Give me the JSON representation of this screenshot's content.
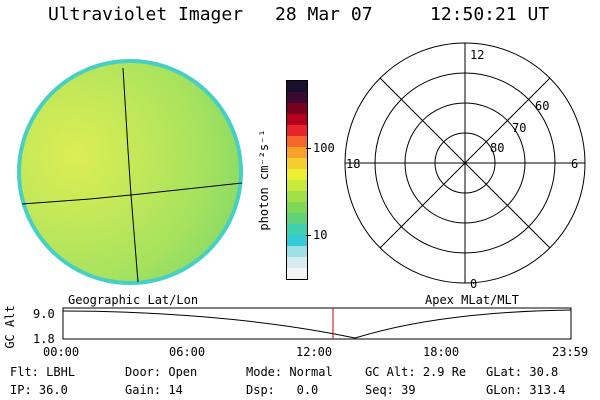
{
  "header": {
    "title": "Ultraviolet Imager",
    "date": "28 Mar 07",
    "time": "12:50:21 UT"
  },
  "colorbar": {
    "unit_label": "photon cm⁻²s⁻¹",
    "ticks": [
      "100",
      "10"
    ],
    "colors": [
      "#1a0f2e",
      "#3a0a30",
      "#7a0022",
      "#b5001d",
      "#e8242a",
      "#f4672a",
      "#f6a22a",
      "#f5cd2c",
      "#eeee33",
      "#c8ea3d",
      "#a0e048",
      "#7fd957",
      "#5fd27b",
      "#3fd0b0",
      "#34c9d6",
      "#9fdfe6",
      "#d6ecee",
      "#f4f6f6"
    ]
  },
  "polar": {
    "mlt_labels": [
      "12",
      "18",
      "6",
      "0"
    ],
    "lat_labels": [
      "60",
      "70",
      "80"
    ]
  },
  "panel_labels": {
    "left": "Geographic Lat/Lon",
    "right": "Apex MLat/MLT"
  },
  "altitude": {
    "axis_label": "GC Alt",
    "y_ticks": [
      "9.0",
      "1.8"
    ],
    "x_ticks": [
      "00:00",
      "06:00",
      "12:00",
      "18:00",
      "23:59"
    ],
    "marker_color": "#cc0000"
  },
  "status": {
    "row1": [
      {
        "label": "Flt:",
        "value": "LBHL"
      },
      {
        "label": "Door:",
        "value": "Open"
      },
      {
        "label": "Mode:",
        "value": "Normal"
      },
      {
        "label": "GC Alt:",
        "value": "2.9 Re"
      },
      {
        "label": "GLat:",
        "value": "30.8"
      }
    ],
    "row2": [
      {
        "label": "IP:",
        "value": "36.0"
      },
      {
        "label": "Gain:",
        "value": "14"
      },
      {
        "label": "Dsp:",
        "value": "0.0"
      },
      {
        "label": "Seq:",
        "value": "39"
      },
      {
        "label": "GLon:",
        "value": "313.4"
      }
    ]
  }
}
